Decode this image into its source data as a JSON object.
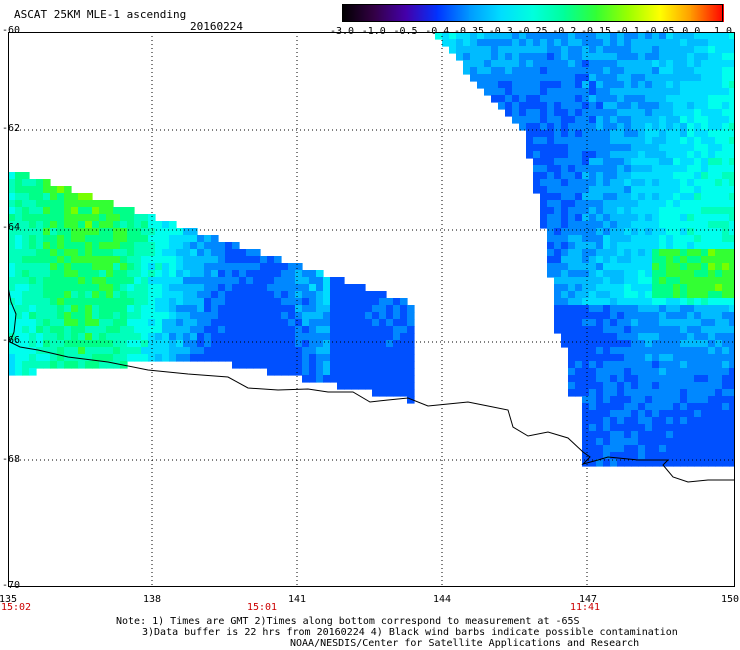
{
  "header": {
    "title": "ASCAT 25KM MLE-1 ascending",
    "date": "20160224"
  },
  "colorbar": {
    "labels": [
      "-3.0",
      "-1.0",
      "-0.5",
      "-0.4",
      "-0.35",
      "-0.3",
      "-0.25",
      "-0.2",
      "-0.15",
      "-0.1",
      "-0.05",
      "0.0",
      "1.0"
    ],
    "colors": [
      "#000000",
      "#330044",
      "#4400aa",
      "#0033ff",
      "#0099ff",
      "#00ddff",
      "#00ffdd",
      "#00ff99",
      "#33ff33",
      "#99ff00",
      "#ffff00",
      "#ff9900",
      "#ff0000"
    ]
  },
  "axes": {
    "lat_labels": [
      "-60",
      "-62",
      "-64",
      "-66",
      "-68",
      "-70"
    ],
    "lon_labels": [
      "135",
      "138",
      "141",
      "144",
      "147",
      "150"
    ],
    "time_labels": [
      "15:02",
      "15:01",
      "11:41"
    ]
  },
  "notes": {
    "line1": "Note: 1) Times are GMT 2)Times along bottom correspond to measurement at -65S",
    "line2": "3)Data buffer is 22 hrs from 20160224 4) Black wind barbs indicate possible contamination",
    "line3": "NOAA/NESDIS/Center for Satellite Applications and Research"
  }
}
